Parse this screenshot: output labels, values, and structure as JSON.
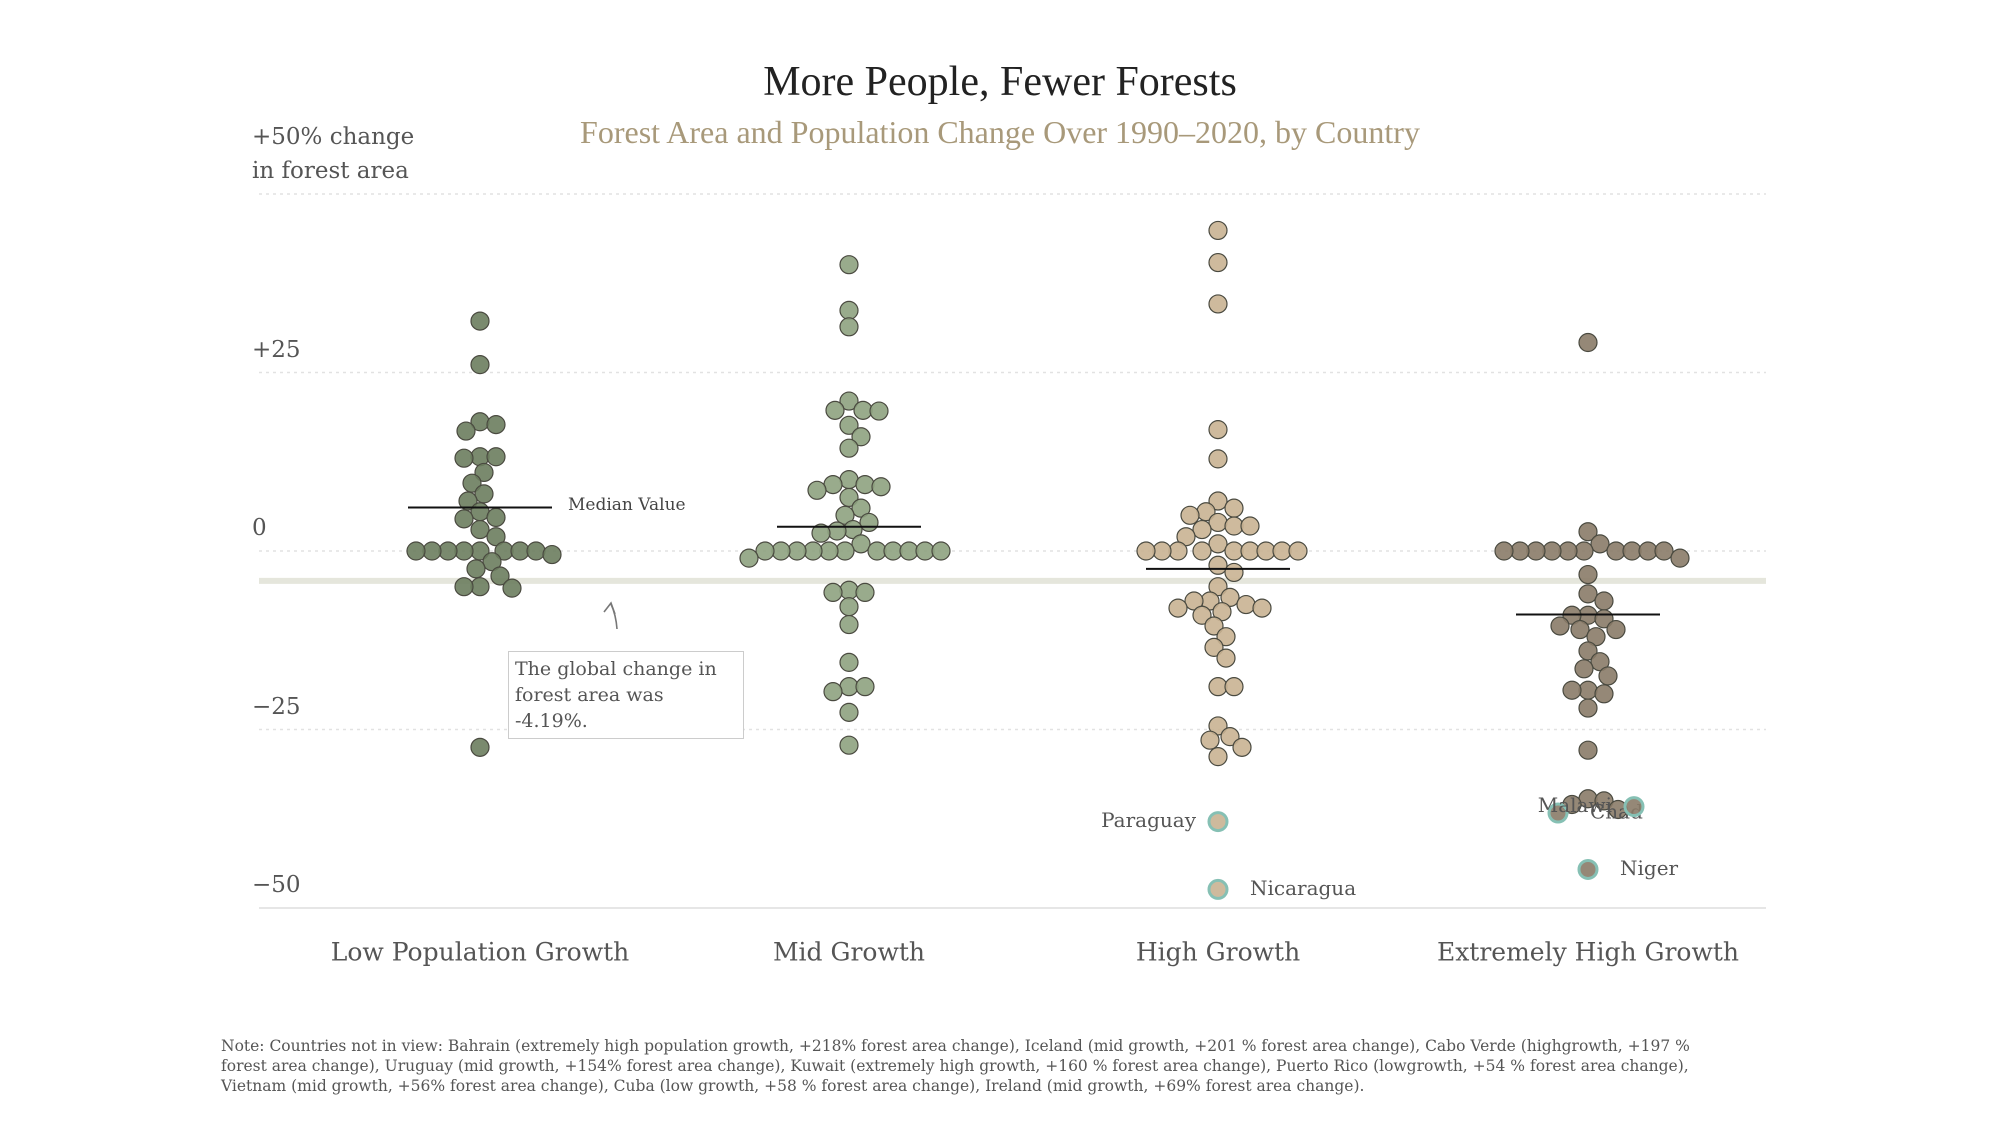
{
  "chart_data": {
    "type": "beeswarm",
    "title": "More People, Fewer Forests",
    "subtitle": "Forest Area and Population Change Over 1990–2020, by Country",
    "ylim": [
      -50,
      50
    ],
    "yticks": [
      {
        "value": 50,
        "label": "+50% change\nin forest area"
      },
      {
        "value": 25,
        "label": "+25"
      },
      0,
      {
        "value": -25,
        "label": "−25"
      },
      {
        "value": -50,
        "label": "−50"
      }
    ],
    "grid": true,
    "global_change": -4.19,
    "global_annotation": "The global change in forest area was -4.19%.",
    "median_label": "Median Value",
    "highlight_color": "#86c0b4",
    "groups": [
      {
        "name": "Low Population Growth",
        "color": "#6b7d5e",
        "median": 6.1,
        "values": [
          32.2,
          26.1,
          18.1,
          17.7,
          16.8,
          13.2,
          13.2,
          13.0,
          11,
          9.5,
          8,
          7,
          5.5,
          4.7,
          4.5,
          3,
          2,
          0,
          0,
          0,
          0,
          0,
          0,
          0,
          0,
          -0.5,
          -1.5,
          -2.5,
          -3.5,
          -5,
          -5,
          -5.2,
          -27.5
        ],
        "labeled": []
      },
      {
        "name": "Mid Growth",
        "color": "#8ea27f",
        "median": 3.4,
        "values": [
          40.1,
          33.7,
          31.4,
          21,
          19.7,
          19.7,
          19.6,
          17.6,
          16,
          14.4,
          10,
          9.3,
          9.3,
          9,
          8.5,
          7.5,
          6,
          5,
          4,
          3,
          2.8,
          2.5,
          1,
          0,
          0,
          0,
          0,
          0,
          0,
          0,
          0,
          0,
          0,
          0,
          -1,
          -5.5,
          -5.8,
          -5.8,
          -7.8,
          -10.3,
          -15.6,
          -19,
          -19,
          -19.7,
          -22.6,
          -27.2
        ],
        "labeled": []
      },
      {
        "name": "High Growth",
        "color": "#c9b392",
        "median": -2.5,
        "values": [
          44.9,
          40.4,
          34.6,
          17,
          12.9,
          7,
          6,
          5.5,
          5,
          4,
          3.5,
          3.5,
          3,
          2,
          1,
          0,
          0,
          0,
          0,
          0,
          0,
          0,
          0,
          0,
          -2,
          -3,
          -5,
          -6.5,
          -7,
          -7,
          -7.5,
          -8,
          -8,
          -8.5,
          -9,
          -10.5,
          -12,
          -13.5,
          -15,
          -19,
          -19,
          -24.5,
          -26,
          -26.5,
          -27.5,
          -28.8
        ],
        "labeled": [
          {
            "name": "Paraguay",
            "value": -37.9,
            "side": "left"
          },
          {
            "name": "Nicaragua",
            "value": -47.4,
            "side": "right"
          }
        ]
      },
      {
        "name": "Extremely High Growth",
        "color": "#8a7b68",
        "median": -8.9,
        "values": [
          29.2,
          2.7,
          1,
          0,
          0,
          0,
          0,
          0,
          0,
          0,
          0,
          0,
          0,
          -1,
          -3.3,
          -6,
          -7,
          -9,
          -9,
          -9.5,
          -10.5,
          -11,
          -11,
          -12,
          -14,
          -15.5,
          -16.5,
          -17.5,
          -19.5,
          -19.5,
          -20,
          -22,
          -27.9,
          -34.7,
          -35,
          -35.5,
          -36.2
        ],
        "labeled": [
          {
            "name": "Chad",
            "value": -36.7,
            "side": "right"
          },
          {
            "name": "Malawi",
            "value": -35.8,
            "side": "left"
          },
          {
            "name": "Niger",
            "value": -44.6,
            "side": "right"
          }
        ]
      }
    ],
    "note": "Note: Countries not in view: Bahrain (extremely high population growth, +218% forest area change), Iceland (mid growth, +201 % forest area change), Cabo Verde (highgrowth, +197 % forest area change), Uruguay (mid growth, +154% forest area change), Kuwait (extremely high growth, +160 % forest area change), Puerto Rico (lowgrowth, +54 % forest area change), Vietnam (mid growth, +56% forest area change), Cuba (low growth, +58 % forest area change), Ireland (mid growth, +69% forest area change)."
  }
}
